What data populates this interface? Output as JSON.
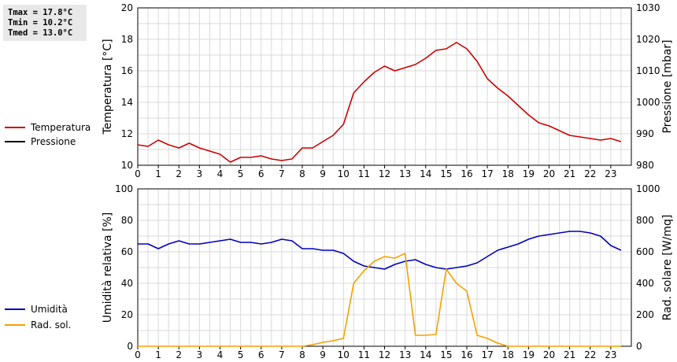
{
  "stats": {
    "tmax": "Tmax = 17.8°C",
    "tmin": "Tmin = 10.2°C",
    "tmed": "Tmed = 13.0°C"
  },
  "legend_top": [
    {
      "label": "Temperatura",
      "color": "#cc0000"
    },
    {
      "label": "Pressione",
      "color": "#000000"
    }
  ],
  "legend_bottom": [
    {
      "label": "Umidità",
      "color": "#0000bb"
    },
    {
      "label": "Rad. sol.",
      "color": "#f5a000"
    }
  ],
  "chart_data": [
    {
      "type": "line",
      "ylabel": "Temperatura [°C]",
      "y2label": "Pressione [mbar]",
      "xlim": [
        0,
        24
      ],
      "ylim": [
        10,
        20
      ],
      "y2lim": [
        980,
        1030
      ],
      "xticks": [
        "0",
        "1",
        "2",
        "3",
        "4",
        "5",
        "6",
        "7",
        "8",
        "9",
        "10",
        "11",
        "12",
        "13",
        "14",
        "15",
        "16",
        "17",
        "18",
        "19",
        "20",
        "21",
        "22",
        "23"
      ],
      "yticks": [
        "10",
        "12",
        "14",
        "16",
        "18",
        "20"
      ],
      "y2ticks": [
        "980",
        "990",
        "1000",
        "1010",
        "1020",
        "1030"
      ],
      "grid": true,
      "series": [
        {
          "name": "Temperatura",
          "color": "#cc0000",
          "x": [
            0,
            0.5,
            1,
            1.5,
            2,
            2.5,
            3,
            3.5,
            4,
            4.5,
            5,
            5.5,
            6,
            6.5,
            7,
            7.5,
            8,
            8.5,
            9,
            9.5,
            10,
            10.5,
            11,
            11.5,
            12,
            12.5,
            13,
            13.5,
            14,
            14.5,
            15,
            15.5,
            16,
            16.5,
            17,
            17.5,
            18,
            18.5,
            19,
            19.5,
            20,
            20.5,
            21,
            21.5,
            22,
            22.5,
            23,
            23.5
          ],
          "y": [
            11.3,
            11.2,
            11.6,
            11.3,
            11.1,
            11.4,
            11.1,
            10.9,
            10.7,
            10.2,
            10.5,
            10.5,
            10.6,
            10.4,
            10.3,
            10.4,
            11.1,
            11.1,
            11.5,
            11.9,
            12.6,
            14.6,
            15.3,
            15.9,
            16.3,
            16.0,
            16.2,
            16.4,
            16.8,
            17.3,
            17.4,
            17.8,
            17.4,
            16.6,
            15.5,
            14.9,
            14.4,
            13.8,
            13.2,
            12.7,
            12.5,
            12.2,
            11.9,
            11.8,
            11.7,
            11.6,
            11.7,
            11.5
          ]
        },
        {
          "name": "Pressione",
          "color": "#000000",
          "x": [],
          "y": []
        }
      ]
    },
    {
      "type": "line",
      "ylabel": "Umidità relativa [%]",
      "y2label": "Rad. solare [W/mq]",
      "xlim": [
        0,
        24
      ],
      "ylim": [
        0,
        100
      ],
      "y2lim": [
        0,
        1000
      ],
      "xticks": [
        "0",
        "1",
        "2",
        "3",
        "4",
        "5",
        "6",
        "7",
        "8",
        "9",
        "10",
        "11",
        "12",
        "13",
        "14",
        "15",
        "16",
        "17",
        "18",
        "19",
        "20",
        "21",
        "22",
        "23"
      ],
      "yticks": [
        "0",
        "20",
        "40",
        "60",
        "80",
        "100"
      ],
      "y2ticks": [
        "0",
        "200",
        "400",
        "600",
        "800",
        "1000"
      ],
      "grid": true,
      "series": [
        {
          "name": "Umidità",
          "color": "#0000bb",
          "x": [
            0,
            0.5,
            1,
            1.5,
            2,
            2.5,
            3,
            3.5,
            4,
            4.5,
            5,
            5.5,
            6,
            6.5,
            7,
            7.5,
            8,
            8.5,
            9,
            9.5,
            10,
            10.5,
            11,
            11.5,
            12,
            12.5,
            13,
            13.5,
            14,
            14.5,
            15,
            15.5,
            16,
            16.5,
            17,
            17.5,
            18,
            18.5,
            19,
            19.5,
            20,
            20.5,
            21,
            21.5,
            22,
            22.5,
            23,
            23.5
          ],
          "y": [
            65,
            65,
            62,
            65,
            67,
            65,
            65,
            66,
            67,
            68,
            66,
            66,
            65,
            66,
            68,
            67,
            62,
            62,
            61,
            61,
            59,
            54,
            51,
            50,
            49,
            52,
            54,
            55,
            52,
            50,
            49,
            50,
            51,
            53,
            57,
            61,
            63,
            65,
            68,
            70,
            71,
            72,
            73,
            73,
            72,
            70,
            64,
            61
          ]
        },
        {
          "name": "Rad. sol.",
          "color": "#f5a000",
          "x": [
            0,
            0.5,
            1,
            1.5,
            2,
            2.5,
            3,
            3.5,
            4,
            4.5,
            5,
            5.5,
            6,
            6.5,
            7,
            7.5,
            8,
            8.5,
            9,
            9.5,
            10,
            10.5,
            11,
            11.5,
            12,
            12.5,
            13,
            13.5,
            14,
            14.5,
            15,
            15.5,
            16,
            16.5,
            17,
            17.5,
            18,
            18.5,
            19,
            19.5,
            20,
            20.5,
            21,
            21.5,
            22,
            22.5,
            23,
            23.5
          ],
          "y": [
            0,
            0,
            0,
            0,
            0,
            0,
            0,
            0,
            0,
            0,
            0,
            0,
            0,
            0,
            0,
            0,
            0,
            10,
            25,
            35,
            50,
            400,
            480,
            540,
            570,
            560,
            590,
            70,
            70,
            75,
            490,
            400,
            350,
            70,
            50,
            20,
            0,
            0,
            0,
            0,
            0,
            0,
            0,
            0,
            0,
            0,
            0,
            0
          ]
        }
      ]
    }
  ]
}
